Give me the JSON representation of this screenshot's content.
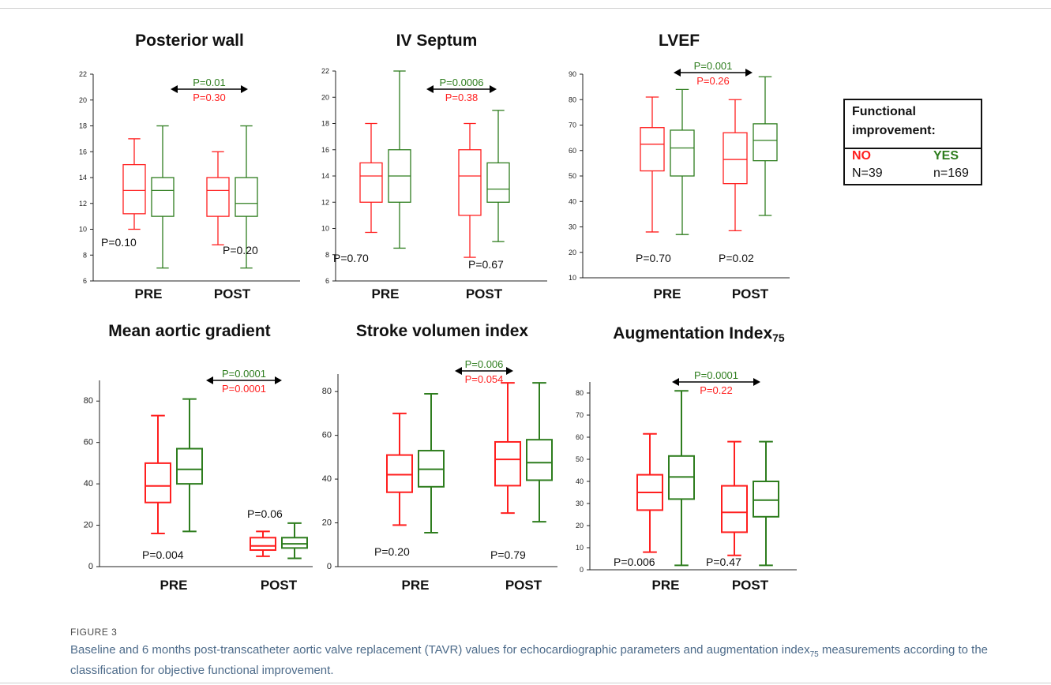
{
  "colors": {
    "no": "#ff1f1f",
    "yes": "#2e7d1e",
    "axis": "#222222",
    "text": "#111111"
  },
  "legend": {
    "title_line1": "Functional",
    "title_line2": "improvement:",
    "no_label": "NO",
    "yes_label": "YES",
    "no_n": "N=39",
    "yes_n": "n=169"
  },
  "caption": {
    "label": "FIGURE 3",
    "text_before": "Baseline and 6 months post-transcatheter aortic valve replacement (TAVR) values for echocardiographic parameters and augmentation index",
    "text_sub": "75",
    "text_after": " measurements according to the classification for objective functional improvement."
  },
  "chart_data": [
    {
      "type": "box",
      "title": "Posterior wall",
      "title_sub": "",
      "categories": [
        "PRE",
        "POST"
      ],
      "ylim": [
        6,
        22
      ],
      "yticks": [
        6,
        8,
        10,
        12,
        14,
        16,
        18,
        20,
        22
      ],
      "series": [
        {
          "color": "no",
          "boxes": [
            {
              "min": 10,
              "q1": 11.2,
              "median": 13,
              "q3": 15,
              "max": 17
            },
            {
              "min": 8.8,
              "q1": 11,
              "median": 13,
              "q3": 14,
              "max": 16
            }
          ]
        },
        {
          "color": "yes",
          "boxes": [
            {
              "min": 7,
              "q1": 11,
              "median": 13,
              "q3": 14,
              "max": 18
            },
            {
              "min": 7,
              "q1": 11,
              "median": 12,
              "q3": 14,
              "max": 18
            }
          ]
        }
      ],
      "within_p": [
        "P=0.10",
        "P=0.20"
      ],
      "between_p_yes": "P=0.01",
      "between_p_no": "P=0.30"
    },
    {
      "type": "box",
      "title": "IV Septum",
      "title_sub": "",
      "categories": [
        "PRE",
        "POST"
      ],
      "ylim": [
        6,
        22
      ],
      "yticks": [
        6,
        8,
        10,
        12,
        14,
        16,
        18,
        20,
        22
      ],
      "series": [
        {
          "color": "no",
          "boxes": [
            {
              "min": 9.7,
              "q1": 12,
              "median": 14,
              "q3": 15,
              "max": 18
            },
            {
              "min": 7.8,
              "q1": 11,
              "median": 14,
              "q3": 16,
              "max": 18
            }
          ]
        },
        {
          "color": "yes",
          "boxes": [
            {
              "min": 8.5,
              "q1": 12,
              "median": 14,
              "q3": 16,
              "max": 22
            },
            {
              "min": 9,
              "q1": 12,
              "median": 13,
              "q3": 15,
              "max": 19
            }
          ]
        }
      ],
      "within_p": [
        "P=0.70",
        "P=0.67"
      ],
      "between_p_yes": "P=0.0006",
      "between_p_no": "P=0.38"
    },
    {
      "type": "box",
      "title": "LVEF",
      "title_sub": "",
      "categories": [
        "PRE",
        "POST"
      ],
      "ylim": [
        10,
        90
      ],
      "yticks": [
        10,
        20,
        30,
        40,
        50,
        60,
        70,
        80,
        90
      ],
      "series": [
        {
          "color": "no",
          "boxes": [
            {
              "min": 28,
              "q1": 52,
              "median": 62.5,
              "q3": 69,
              "max": 81
            },
            {
              "min": 28.5,
              "q1": 47,
              "median": 56.5,
              "q3": 67,
              "max": 80
            }
          ]
        },
        {
          "color": "yes",
          "boxes": [
            {
              "min": 27,
              "q1": 50,
              "median": 61,
              "q3": 68,
              "max": 84
            },
            {
              "min": 34.5,
              "q1": 56,
              "median": 64,
              "q3": 70.5,
              "max": 89
            }
          ]
        }
      ],
      "within_p": [
        "P=0.70",
        "P=0.02"
      ],
      "between_p_yes": "P=0.001",
      "between_p_no": "P=0.26"
    },
    {
      "type": "box",
      "title": "Mean aortic gradient",
      "title_sub": "",
      "categories": [
        "PRE",
        "POST"
      ],
      "ylim": [
        0,
        90
      ],
      "yticks": [
        0,
        20,
        40,
        60,
        80
      ],
      "series": [
        {
          "color": "no",
          "boxes": [
            {
              "min": 16,
              "q1": 31,
              "median": 39,
              "q3": 50,
              "max": 73
            },
            {
              "min": 5,
              "q1": 8,
              "median": 10,
              "q3": 14,
              "max": 17
            }
          ]
        },
        {
          "color": "yes",
          "boxes": [
            {
              "min": 17,
              "q1": 40,
              "median": 47,
              "q3": 57,
              "max": 81
            },
            {
              "min": 4,
              "q1": 9,
              "median": 11,
              "q3": 14,
              "max": 21
            }
          ]
        }
      ],
      "within_p": [
        "P=0.004",
        "P=0.06"
      ],
      "between_p_yes": "P=0.0001",
      "between_p_no": "P=0.0001"
    },
    {
      "type": "box",
      "title": "Stroke volumen index",
      "title_sub": "",
      "categories": [
        "PRE",
        "POST"
      ],
      "ylim": [
        0,
        88
      ],
      "yticks": [
        0,
        20,
        40,
        60,
        80
      ],
      "series": [
        {
          "color": "no",
          "boxes": [
            {
              "min": 19,
              "q1": 34,
              "median": 42,
              "q3": 51,
              "max": 70
            },
            {
              "min": 24.5,
              "q1": 37,
              "median": 49,
              "q3": 57,
              "max": 84
            }
          ]
        },
        {
          "color": "yes",
          "boxes": [
            {
              "min": 15.5,
              "q1": 36.5,
              "median": 44.5,
              "q3": 53,
              "max": 79
            },
            {
              "min": 20.5,
              "q1": 39.5,
              "median": 47.5,
              "q3": 58,
              "max": 84
            }
          ]
        }
      ],
      "within_p": [
        "P=0.20",
        "P=0.79"
      ],
      "between_p_yes": "P=0.006",
      "between_p_no": "P=0.054"
    },
    {
      "type": "box",
      "title": "Augmentation Index",
      "title_sub": "75",
      "categories": [
        "PRE",
        "POST"
      ],
      "ylim": [
        0,
        85
      ],
      "yticks": [
        0,
        10,
        20,
        30,
        40,
        50,
        60,
        70,
        80
      ],
      "series": [
        {
          "color": "no",
          "boxes": [
            {
              "min": 8,
              "q1": 27,
              "median": 35,
              "q3": 43,
              "max": 61.5
            },
            {
              "min": 6.5,
              "q1": 17,
              "median": 26,
              "q3": 38,
              "max": 58
            }
          ]
        },
        {
          "color": "yes",
          "boxes": [
            {
              "min": 2,
              "q1": 32,
              "median": 42,
              "q3": 51.5,
              "max": 81
            },
            {
              "min": 2,
              "q1": 24,
              "median": 31.5,
              "q3": 40,
              "max": 58
            }
          ]
        }
      ],
      "within_p": [
        "P=0.006",
        "P=0.47"
      ],
      "between_p_yes": "P=0.0001",
      "between_p_no": "P=0.22"
    }
  ]
}
